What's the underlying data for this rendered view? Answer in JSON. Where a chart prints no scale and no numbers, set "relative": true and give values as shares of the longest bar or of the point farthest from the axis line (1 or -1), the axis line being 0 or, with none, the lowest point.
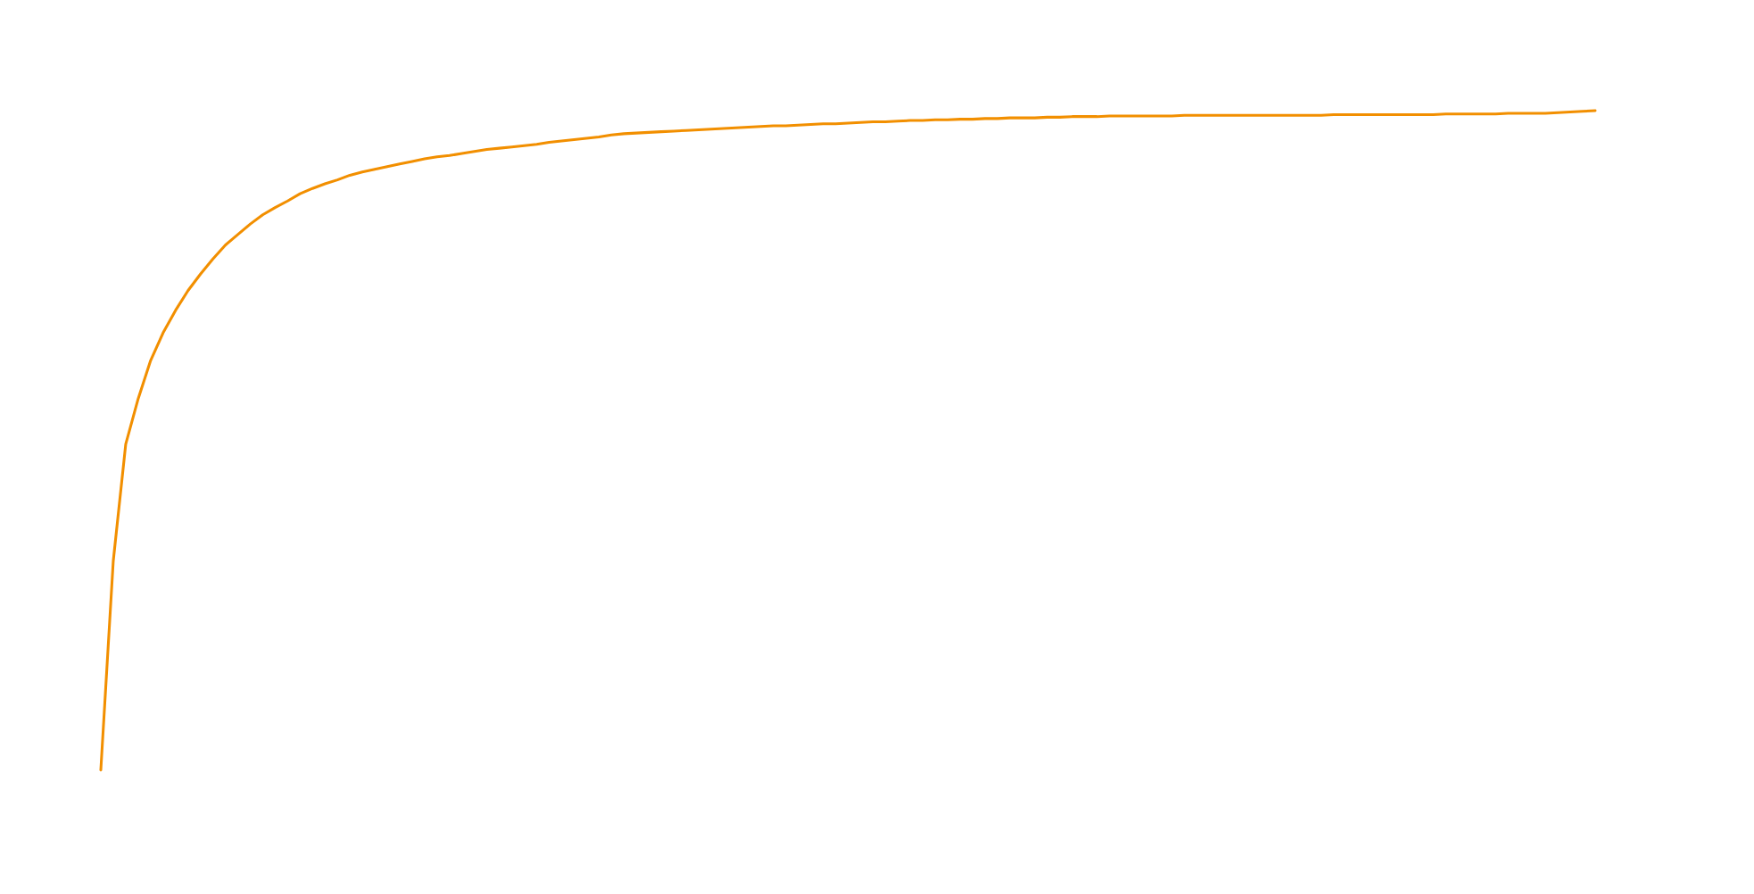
{
  "chart_data": {
    "type": "line",
    "relative": true,
    "categories": [
      null,
      null,
      null,
      null,
      null,
      null,
      null,
      null,
      null,
      null,
      null,
      null,
      null,
      null,
      null,
      null,
      null,
      null,
      null,
      null,
      null,
      null,
      null,
      null,
      null,
      null,
      null,
      null,
      null,
      null,
      null,
      null,
      null,
      null,
      null,
      null,
      null,
      null,
      null,
      null,
      null,
      null,
      null,
      null,
      null,
      null,
      null,
      null,
      null,
      null,
      null,
      null,
      null,
      null,
      null,
      null,
      null,
      null,
      null,
      null,
      null,
      null,
      null,
      null,
      null,
      null,
      null,
      null,
      null,
      null,
      null,
      null,
      null,
      null,
      null,
      null,
      null,
      null,
      null,
      null,
      null,
      null,
      null,
      null,
      null,
      null,
      null,
      null,
      null,
      null,
      null,
      null,
      null,
      null,
      null,
      null,
      null,
      null,
      null,
      null,
      null,
      null,
      null,
      null,
      null,
      null,
      null,
      null,
      null,
      null,
      null,
      null,
      null,
      null,
      null,
      null,
      null,
      null,
      null,
      null,
      null
    ],
    "series": [
      {
        "color": "#f28f00",
        "values": [
          0,
          0.317,
          0.494,
          0.563,
          0.621,
          0.663,
          0.697,
          0.727,
          0.752,
          0.775,
          0.796,
          0.812,
          0.828,
          0.842,
          0.853,
          0.863,
          0.874,
          0.882,
          0.889,
          0.895,
          0.902,
          0.907,
          0.911,
          0.915,
          0.919,
          0.923,
          0.927,
          0.93,
          0.932,
          0.935,
          0.938,
          0.941,
          0.943,
          0.945,
          0.947,
          0.949,
          0.952,
          0.954,
          0.956,
          0.958,
          0.96,
          0.963,
          0.965,
          0.966,
          0.967,
          0.968,
          0.969,
          0.97,
          0.971,
          0.972,
          0.973,
          0.974,
          0.975,
          0.976,
          0.977,
          0.977,
          0.978,
          0.979,
          0.98,
          0.98,
          0.981,
          0.982,
          0.983,
          0.983,
          0.984,
          0.985,
          0.985,
          0.986,
          0.986,
          0.987,
          0.987,
          0.988,
          0.988,
          0.989,
          0.989,
          0.989,
          0.99,
          0.99,
          0.991,
          0.991,
          0.991,
          0.992,
          0.992,
          0.992,
          0.992,
          0.992,
          0.992,
          0.993,
          0.993,
          0.993,
          0.993,
          0.993,
          0.993,
          0.993,
          0.993,
          0.993,
          0.993,
          0.993,
          0.993,
          0.994,
          0.994,
          0.994,
          0.994,
          0.994,
          0.994,
          0.994,
          0.994,
          0.994,
          0.995,
          0.995,
          0.995,
          0.995,
          0.995,
          0.996,
          0.996,
          0.996,
          0.996,
          0.997,
          0.998,
          0.999,
          1.0
        ]
      }
    ]
  }
}
